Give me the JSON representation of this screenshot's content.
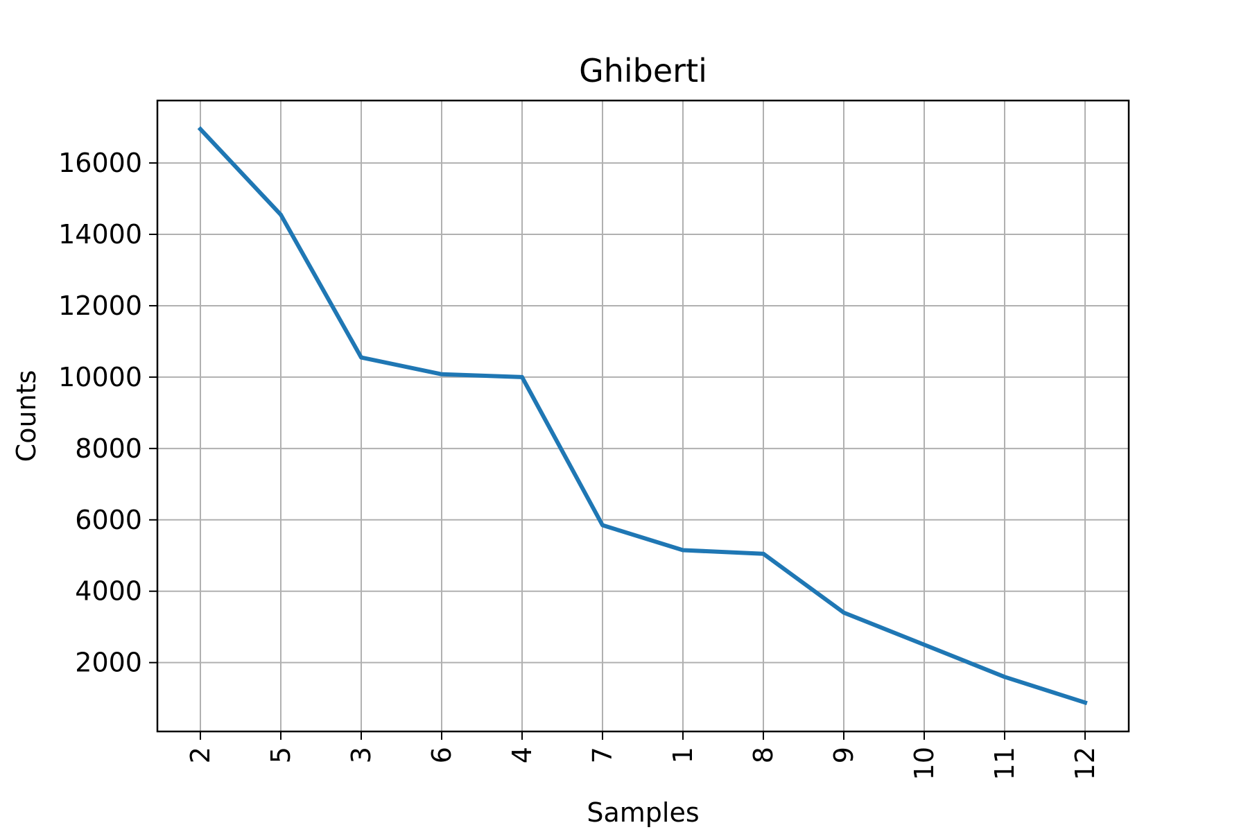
{
  "chart_data": {
    "type": "line",
    "title": "Ghiberti",
    "xlabel": "Samples",
    "ylabel": "Counts",
    "categories": [
      "2",
      "5",
      "3",
      "6",
      "4",
      "7",
      "1",
      "8",
      "9",
      "10",
      "11",
      "12"
    ],
    "series": [
      {
        "values": [
          16950,
          14550,
          10550,
          10080,
          10000,
          5850,
          5150,
          5050,
          3400,
          2500,
          1600,
          880
        ]
      }
    ],
    "ylim": [
      70,
      17750
    ],
    "yticks": [
      2000,
      4000,
      6000,
      8000,
      10000,
      12000,
      14000,
      16000
    ],
    "grid": true,
    "x_tick_rotation": "vertical",
    "colors": {
      "line": "#1f77b4",
      "grid": "#b0b0b0",
      "axes": "#000000"
    }
  }
}
